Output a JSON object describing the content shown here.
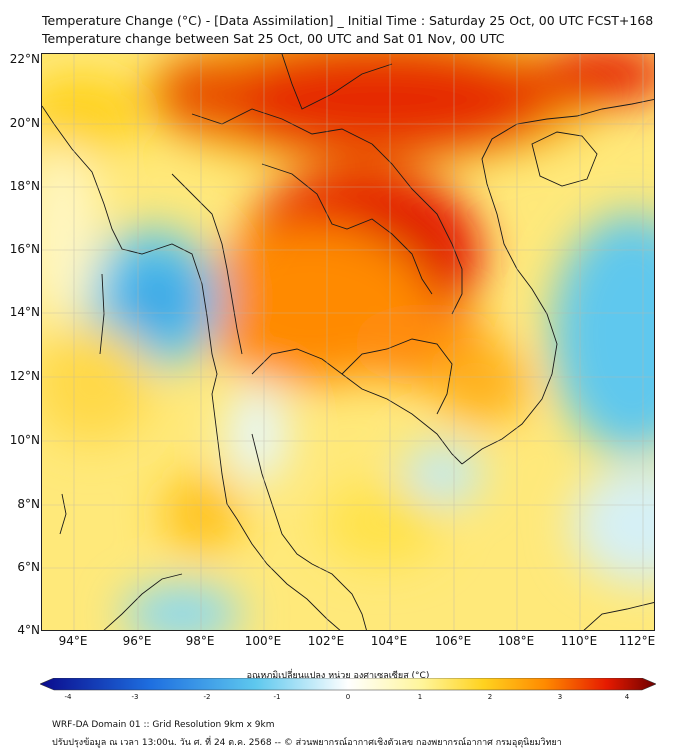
{
  "title": {
    "line1": "Temperature Change (°C) - [Data Assimilation] _ Initial Time : Saturday 25 Oct, 00 UTC FCST+168",
    "line2": "Temperature change between Sat 25 Oct, 00 UTC and Sat 01 Nov, 00 UTC"
  },
  "axes": {
    "lat_ticks": [
      "22°N",
      "20°N",
      "18°N",
      "16°N",
      "14°N",
      "12°N",
      "10°N",
      "8°N",
      "6°N",
      "4°N"
    ],
    "lon_ticks": [
      "94°E",
      "96°E",
      "98°E",
      "100°E",
      "102°E",
      "104°E",
      "106°E",
      "108°E",
      "110°E",
      "112°E"
    ]
  },
  "colorbar": {
    "label": "อุณหภูมิเปลี่ยนแปลง หน่วย องศาเซลเซียส (°C)",
    "ticks": [
      "-4",
      "-3",
      "-2",
      "-1",
      "0",
      "1",
      "2",
      "3",
      "4"
    ],
    "min": -4,
    "max": 4
  },
  "footer": {
    "line1": "WRF-DA Domain 01 :: Grid Resolution 9km x 9km",
    "line2": "ปรับปรุงข้อมูล ณ เวลา 13:00น. วัน ศ. ที่ 24 ต.ค. 2568 -- © ส่วนพยากรณ์อากาศเชิงตัวเลข กองพยากรณ์อากาศ กรมอุตุนิยมวิทยา"
  },
  "colors": {
    "neg_deep": "#0a0a8c",
    "neg_mid": "#1e6fe0",
    "neg_light": "#5ec8ee",
    "zero": "#ffffff",
    "pos_light": "#fff59a",
    "pos_mid": "#ffd21f",
    "pos_warm": "#ff8a00",
    "pos_hot": "#e61a00",
    "pos_deep": "#6e0000"
  }
}
